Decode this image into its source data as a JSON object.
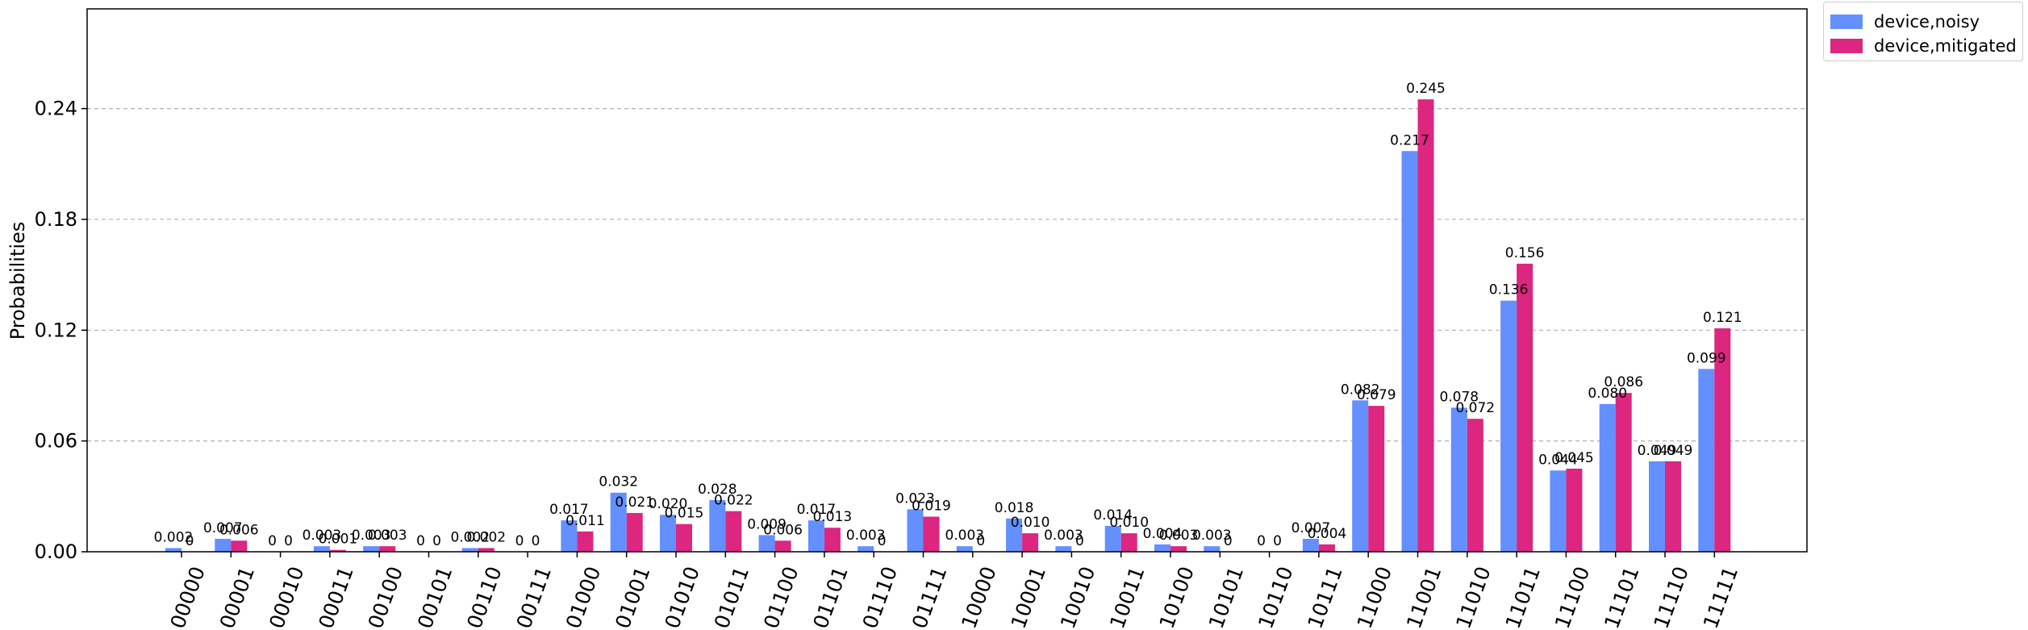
{
  "chart_data": {
    "type": "bar",
    "ylabel": "Probabilities",
    "xlabel": "",
    "ylim": [
      0,
      0.294
    ],
    "yticks": [
      "0.00",
      "0.06",
      "0.12",
      "0.18",
      "0.24"
    ],
    "yticks_values": [
      0,
      0.06,
      0.12,
      0.18,
      0.24
    ],
    "grid": "horizontal dashed",
    "legend_position": "outside top-right",
    "categories": [
      "00000",
      "00001",
      "00010",
      "00011",
      "00100",
      "00101",
      "00110",
      "00111",
      "01000",
      "01001",
      "01010",
      "01011",
      "01100",
      "01101",
      "01110",
      "01111",
      "10000",
      "10001",
      "10010",
      "10011",
      "10100",
      "10101",
      "10110",
      "10111",
      "11000",
      "11001",
      "11010",
      "11011",
      "11100",
      "11101",
      "11110",
      "11111"
    ],
    "series": [
      {
        "name": "device,noisy",
        "color": "#648fff",
        "values": [
          0.002,
          0.007,
          0,
          0.003,
          0.003,
          0,
          0.002,
          0,
          0.017,
          0.032,
          0.02,
          0.028,
          0.009,
          0.017,
          0.003,
          0.023,
          0.003,
          0.018,
          0.003,
          0.014,
          0.004,
          0.003,
          0,
          0.007,
          0.082,
          0.217,
          0.078,
          0.136,
          0.044,
          0.08,
          0.049,
          0.099
        ],
        "labels": [
          "0.002",
          "0.007",
          "0",
          "0.003",
          "0.003",
          "0",
          "0.002",
          "0",
          "0.017",
          "0.032",
          "0.020",
          "0.028",
          "0.009",
          "0.017",
          "0.003",
          "0.023",
          "0.003",
          "0.018",
          "0.003",
          "0.014",
          "0.004",
          "0.003",
          "0",
          "0.007",
          "0.082",
          "0.217",
          "0.078",
          "0.136",
          "0.044",
          "0.080",
          "0.049",
          "0.099"
        ]
      },
      {
        "name": "device,mitigated",
        "color": "#dc267f",
        "values": [
          0,
          0.006,
          0,
          0.001,
          0.003,
          0,
          0.002,
          0,
          0.011,
          0.021,
          0.015,
          0.022,
          0.006,
          0.013,
          0,
          0.019,
          0,
          0.01,
          0,
          0.01,
          0.003,
          0,
          0,
          0.004,
          0.079,
          0.245,
          0.072,
          0.156,
          0.045,
          0.086,
          0.049,
          0.121
        ],
        "labels": [
          "0",
          "0.006",
          "0",
          "0.001",
          "0.003",
          "0",
          "0.002",
          "0",
          "0.011",
          "0.021",
          "0.015",
          "0.022",
          "0.006",
          "0.013",
          "0",
          "0.019",
          "0",
          "0.010",
          "0",
          "0.010",
          "0.003",
          "0",
          "0",
          "0.004",
          "0.079",
          "0.245",
          "0.072",
          "0.156",
          "0.045",
          "0.086",
          "0.049",
          "0.121"
        ]
      }
    ]
  }
}
